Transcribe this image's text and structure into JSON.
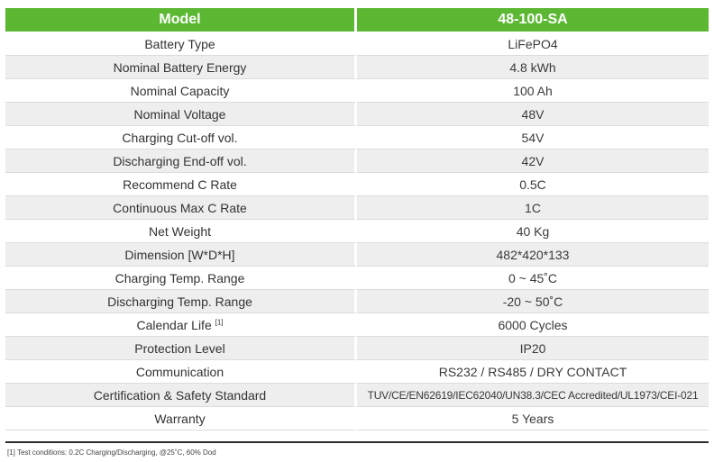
{
  "header": {
    "col1": "Model",
    "col2": "48-100-SA"
  },
  "rows": [
    {
      "label": "Battery Type",
      "value": "LiFePO4"
    },
    {
      "label": "Nominal Battery Energy",
      "value": "4.8 kWh"
    },
    {
      "label": "Nominal Capacity",
      "value": "100 Ah"
    },
    {
      "label": "Nominal Voltage",
      "value": "48V"
    },
    {
      "label": "Charging Cut-off vol.",
      "value": "54V"
    },
    {
      "label": "Discharging End-off vol.",
      "value": "42V"
    },
    {
      "label": "Recommend C Rate",
      "value": "0.5C"
    },
    {
      "label": "Continuous Max C Rate",
      "value": "1C"
    },
    {
      "label": "Net Weight",
      "value": "40 Kg"
    },
    {
      "label": "Dimension [W*D*H]",
      "value": "482*420*133"
    },
    {
      "label": "Charging Temp. Range",
      "value": "0 ~ 45˚C"
    },
    {
      "label": "Discharging Temp. Range",
      "value": "-20 ~ 50˚C"
    },
    {
      "label": "Calendar Life",
      "label_sup": "[1]",
      "value": "6000 Cycles"
    },
    {
      "label": "Protection Level",
      "value": "IP20"
    },
    {
      "label": "Communication",
      "value": "RS232 / RS485 / DRY CONTACT"
    },
    {
      "label": "Certification & Safety Standard",
      "value": "TUV/CE/EN62619/IEC62040/UN38.3/CEC Accredited/UL1973/CEI-021"
    },
    {
      "label": "Warranty",
      "value": "5 Years"
    }
  ],
  "footnote": "[1] Test conditions: 0.2C Charging/Discharging, @25˚C, 60% Dod",
  "colors": {
    "header_bg": "#5cb833",
    "stripe": "#eeeeee"
  }
}
